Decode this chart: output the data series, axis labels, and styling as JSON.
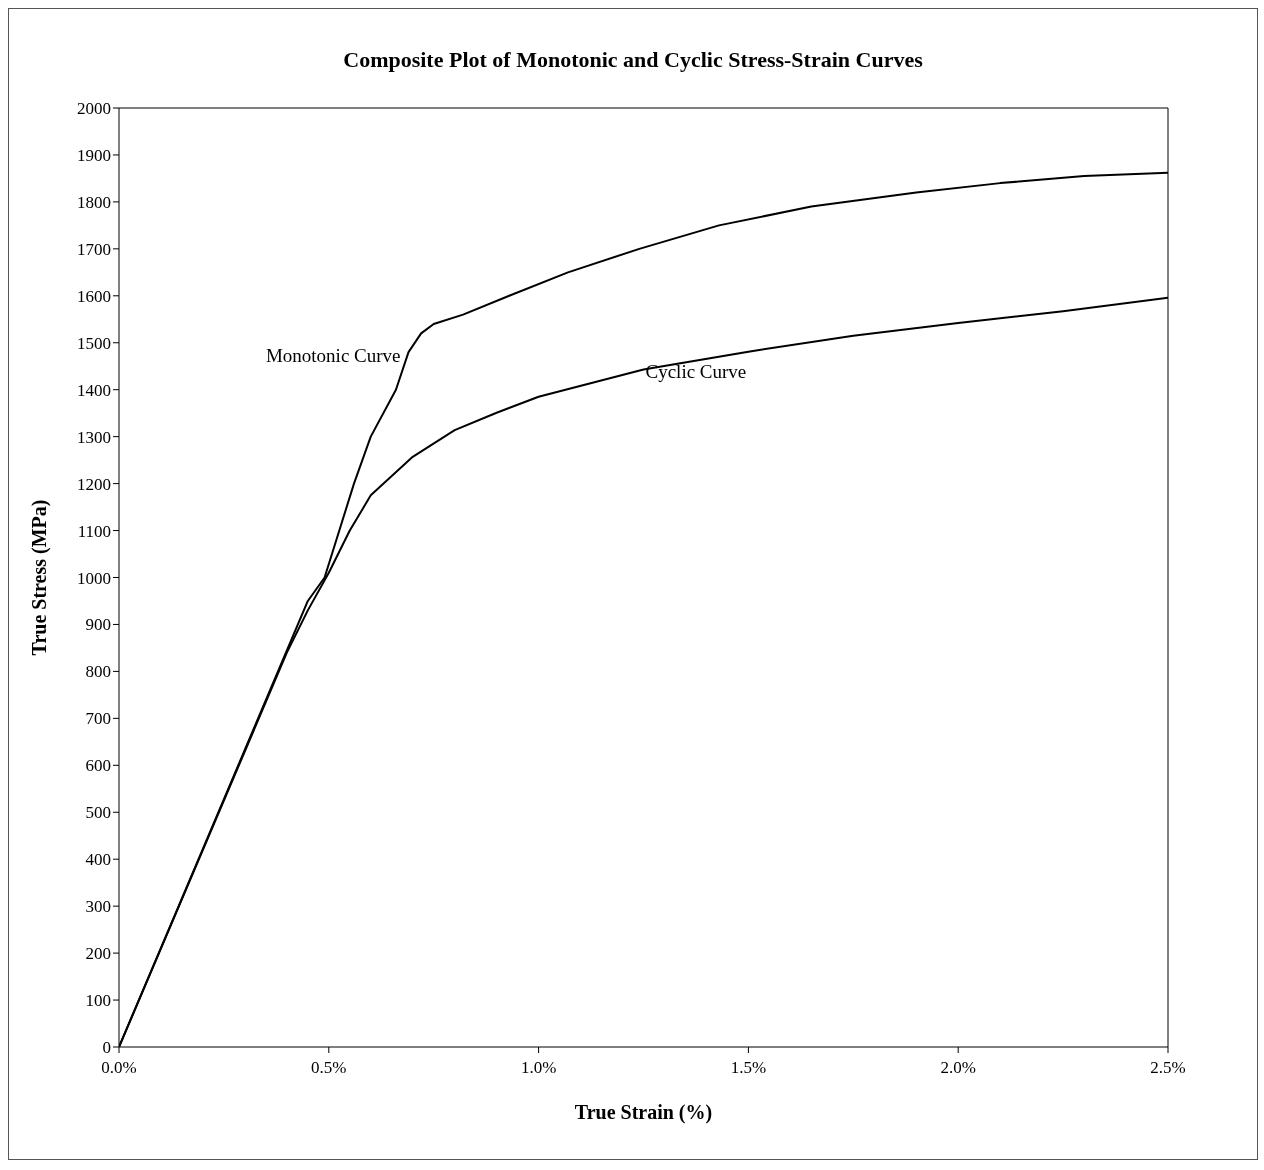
{
  "chart_data": {
    "type": "line",
    "title": "Composite Plot of Monotonic and Cyclic Stress-Strain Curves",
    "xlabel": "True Strain  (%)",
    "ylabel": "True Stress  (MPa)",
    "xlim": [
      0,
      2.5
    ],
    "xticks": [
      {
        "value": 0,
        "label": "0.0%"
      },
      {
        "value": 0.5,
        "label": "0.5%"
      },
      {
        "value": 1,
        "label": "1.0%"
      },
      {
        "value": 1.5,
        "label": "1.5%"
      },
      {
        "value": 2,
        "label": "2.0%"
      },
      {
        "value": 2.5,
        "label": "2.5%"
      }
    ],
    "ylim": [
      0,
      2000
    ],
    "yticks": [
      0,
      100,
      200,
      300,
      400,
      500,
      600,
      700,
      800,
      900,
      1000,
      1100,
      1200,
      1300,
      1400,
      1500,
      1600,
      1700,
      1800,
      1900,
      2000
    ],
    "marker": "none",
    "line_style": "solid",
    "series": [
      {
        "name": "Monotonic Curve",
        "color": "#000000",
        "x": [
          0,
          0.45,
          0.49,
          0.56,
          0.6,
          0.66,
          0.69,
          0.72,
          0.75,
          0.82,
          0.93,
          1.07,
          1.24,
          1.43,
          1.65,
          1.9,
          2.1,
          2.3,
          2.5
        ],
        "values": [
          0,
          950,
          1000,
          1200,
          1300,
          1400,
          1480,
          1520,
          1540,
          1560,
          1600,
          1650,
          1700,
          1750,
          1790,
          1820,
          1840,
          1855,
          1862
        ]
      },
      {
        "name": "Cyclic Curve",
        "color": "#000000",
        "x": [
          0,
          0.4,
          0.45,
          0.5,
          0.55,
          0.6,
          0.7,
          0.8,
          0.9,
          1,
          1.25,
          1.5,
          1.75,
          2,
          2.25,
          2.5
        ],
        "values": [
          0,
          840,
          930,
          1010,
          1100,
          1175,
          1257,
          1314,
          1351,
          1385,
          1443,
          1481,
          1515,
          1542,
          1567,
          1596
        ]
      }
    ]
  }
}
